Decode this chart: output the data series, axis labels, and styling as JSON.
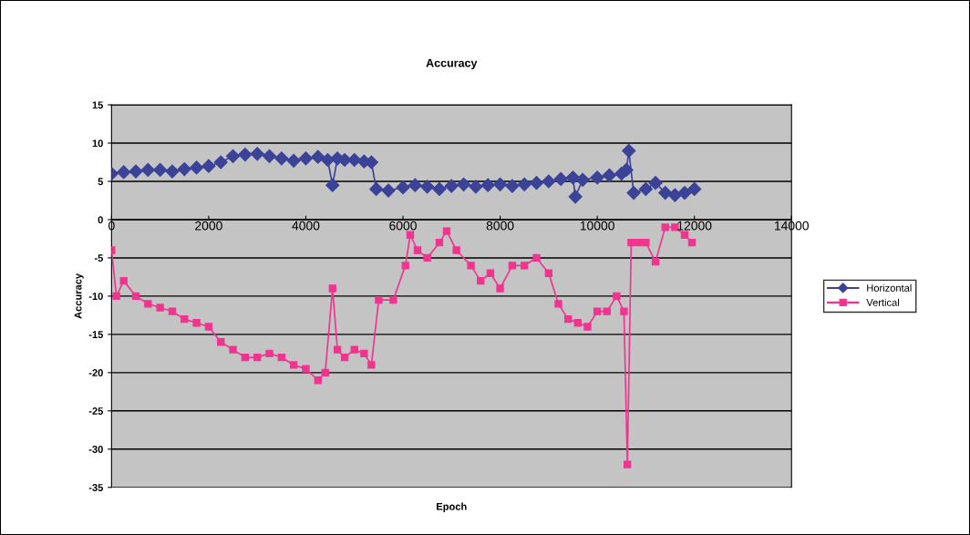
{
  "chart_data": {
    "type": "line",
    "title": "Accuracy",
    "xlabel": "Epoch",
    "ylabel": "Accuracy",
    "xlim": [
      0,
      14000
    ],
    "xticks": [
      0,
      2000,
      4000,
      6000,
      8000,
      10000,
      12000,
      14000
    ],
    "ylim": [
      -35,
      15
    ],
    "yticks": [
      -35,
      -30,
      -25,
      -20,
      -15,
      -10,
      -5,
      0,
      5,
      10,
      15
    ],
    "grid": "y",
    "legend": "right",
    "line_style": "solid",
    "series": [
      {
        "name": "Horizontal",
        "color": "#3b4399",
        "marker": "diamond",
        "x": [
          0,
          250,
          500,
          750,
          1000,
          1250,
          1500,
          1750,
          2000,
          2250,
          2500,
          2750,
          3000,
          3250,
          3500,
          3750,
          4000,
          4250,
          4450,
          4550,
          4650,
          4800,
          5000,
          5200,
          5350,
          5450,
          5700,
          6000,
          6250,
          6500,
          6750,
          7000,
          7250,
          7500,
          7750,
          8000,
          8250,
          8500,
          8750,
          9000,
          9250,
          9500,
          9550,
          9700,
          10000,
          10250,
          10500,
          10600,
          10650,
          10750,
          11000,
          11200,
          11400,
          11600,
          11800,
          12000
        ],
        "values": [
          6,
          6.2,
          6.3,
          6.5,
          6.5,
          6.3,
          6.6,
          6.8,
          7,
          7.5,
          8.3,
          8.5,
          8.6,
          8.3,
          8,
          7.7,
          8,
          8.2,
          7.8,
          4.5,
          8,
          7.8,
          7.8,
          7.6,
          7.5,
          4,
          3.8,
          4.2,
          4.5,
          4.3,
          4,
          4.4,
          4.6,
          4.3,
          4.5,
          4.6,
          4.4,
          4.6,
          4.8,
          5,
          5.3,
          5.5,
          3,
          5.2,
          5.5,
          5.8,
          6,
          6.5,
          9,
          3.5,
          4,
          4.8,
          3.5,
          3.2,
          3.5,
          4
        ]
      },
      {
        "name": "Vertical",
        "color": "#f0348f",
        "marker": "square",
        "x": [
          0,
          100,
          250,
          500,
          750,
          1000,
          1250,
          1500,
          1750,
          2000,
          2250,
          2500,
          2750,
          3000,
          3250,
          3500,
          3750,
          4000,
          4250,
          4400,
          4550,
          4650,
          4800,
          5000,
          5200,
          5350,
          5500,
          5800,
          6050,
          6150,
          6300,
          6500,
          6750,
          6900,
          7100,
          7400,
          7600,
          7800,
          8000,
          8250,
          8500,
          8750,
          9000,
          9200,
          9400,
          9600,
          9800,
          10000,
          10200,
          10400,
          10550,
          10620,
          10700,
          10850,
          11000,
          11200,
          11400,
          11600,
          11800,
          11950
        ],
        "values": [
          -4,
          -10,
          -8,
          -10,
          -11,
          -11.5,
          -12,
          -13,
          -13.5,
          -14,
          -16,
          -17,
          -18,
          -18,
          -17.5,
          -18,
          -19,
          -19.5,
          -21,
          -20,
          -9,
          -17,
          -18,
          -17,
          -17.5,
          -19,
          -10.5,
          -10.5,
          -6,
          -2,
          -4,
          -5,
          -3,
          -1.5,
          -4,
          -6,
          -8,
          -7,
          -9,
          -6,
          -6,
          -5,
          -7,
          -11,
          -13,
          -13.5,
          -14,
          -12,
          -12,
          -10,
          -12,
          -32,
          -3,
          -3,
          -3,
          -5.5,
          -1,
          -1,
          -2,
          -3
        ]
      }
    ]
  }
}
